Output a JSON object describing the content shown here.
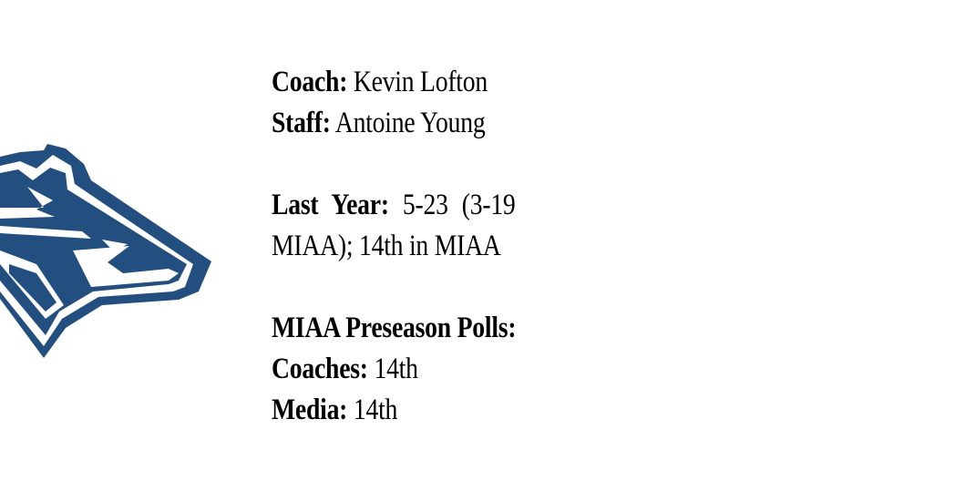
{
  "logo": {
    "icon": "wolf-head-logo-icon",
    "color": "#234e80"
  },
  "info": {
    "coach_label": "Coach:",
    "coach_value": "Kevin Lofton",
    "staff_label": "Staff:",
    "staff_value": "Antoine Young",
    "last_year_label": "Last Year:",
    "last_year_value": "5-23 (3-19",
    "last_year_value_cont": "MIAA); 14th in MIAA",
    "polls_heading": "MIAA Preseason Polls:",
    "coaches_label": "Coaches:",
    "coaches_value": "14th",
    "media_label": "Media:",
    "media_value": "14th"
  }
}
